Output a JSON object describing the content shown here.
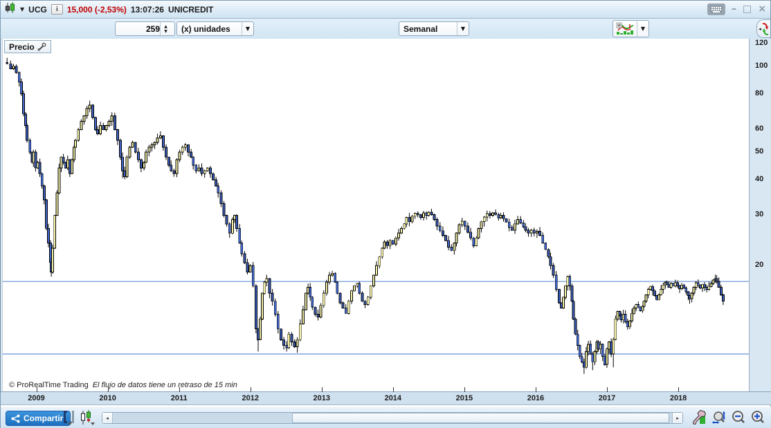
{
  "window": {
    "symbol": "UCG",
    "quote": "15,000 (-2,53%)",
    "time": "13:07:26",
    "name": "UNICREDIT",
    "controls": {
      "minimize": "–",
      "maximize": "□",
      "close": "×"
    }
  },
  "toolbar": {
    "units_value": "259",
    "units_label": "(x) unidades",
    "timeframe": "Semanal"
  },
  "chart": {
    "panel_label": "Precio"
  },
  "footer": {
    "copyright": "© ProRealTime Trading",
    "delay_notice": "El flujo de datos tiene un retraso de 15 min",
    "share_label": "Compartir"
  },
  "chart_data": {
    "type": "candlestick",
    "symbol": "UNICREDIT",
    "ticker": "UCG",
    "timeframe": "Semanal",
    "last_price": 15.0,
    "change_pct": -2.53,
    "quote_time": "13:07:26",
    "y_axis": {
      "scale": "log",
      "top": 124.8,
      "bottom": 7.25,
      "major_ticks": [
        120,
        100,
        80,
        60,
        50,
        40,
        30,
        20
      ],
      "minor_ticks": [
        110,
        90,
        70
      ]
    },
    "x_axis": {
      "start": 2008.5,
      "end": 2018.96,
      "year_ticks": [
        2009,
        2010,
        2011,
        2012,
        2013,
        2014,
        2015,
        2016,
        2017,
        2018
      ]
    },
    "horizontal_lines": {
      "color": "#7da3e0",
      "prices": [
        17.6,
        9.8
      ]
    },
    "colors": {
      "up": "#f3f0a6",
      "down": "#3f63c6",
      "outline": "#000000"
    },
    "candles": [
      [
        2008.56,
        102,
        null,
        107
      ],
      [
        2008.61,
        98
      ],
      [
        2008.65,
        100
      ],
      [
        2008.69,
        95
      ],
      [
        2008.73,
        88
      ],
      [
        2008.76,
        80
      ],
      [
        2008.79,
        68
      ],
      [
        2008.82,
        62
      ],
      [
        2008.84,
        55
      ],
      [
        2008.88,
        50
      ],
      [
        2008.91,
        46
      ],
      [
        2008.93,
        50
      ],
      [
        2008.96,
        44
      ],
      [
        2008.99,
        46
      ],
      [
        2009.02,
        42
      ],
      [
        2009.05,
        38
      ],
      [
        2009.08,
        34
      ],
      [
        2009.11,
        27
      ],
      [
        2009.14,
        24
      ],
      [
        2009.17,
        20.5
      ],
      [
        2009.18,
        19,
        18.3
      ],
      [
        2009.2,
        23
      ],
      [
        2009.23,
        30
      ],
      [
        2009.26,
        36
      ],
      [
        2009.29,
        44
      ],
      [
        2009.32,
        48
      ],
      [
        2009.35,
        46
      ],
      [
        2009.38,
        44
      ],
      [
        2009.41,
        47
      ],
      [
        2009.44,
        42
      ],
      [
        2009.47,
        47
      ],
      [
        2009.5,
        52
      ],
      [
        2009.52,
        55
      ],
      [
        2009.56,
        60
      ],
      [
        2009.6,
        64
      ],
      [
        2009.64,
        67
      ],
      [
        2009.68,
        71
      ],
      [
        2009.72,
        73
      ],
      [
        2009.76,
        66
      ],
      [
        2009.8,
        60
      ],
      [
        2009.83,
        58
      ],
      [
        2009.87,
        62
      ],
      [
        2009.91,
        60
      ],
      [
        2009.95,
        62
      ],
      [
        2009.99,
        64
      ],
      [
        2010.03,
        67
      ],
      [
        2010.07,
        60
      ],
      [
        2010.11,
        55
      ],
      [
        2010.15,
        48
      ],
      [
        2010.18,
        43,
        40.5
      ],
      [
        2010.21,
        41
      ],
      [
        2010.24,
        48
      ],
      [
        2010.28,
        52
      ],
      [
        2010.32,
        54
      ],
      [
        2010.36,
        50
      ],
      [
        2010.4,
        47
      ],
      [
        2010.44,
        44
      ],
      [
        2010.48,
        46
      ],
      [
        2010.51,
        50
      ],
      [
        2010.55,
        52
      ],
      [
        2010.59,
        53
      ],
      [
        2010.63,
        54
      ],
      [
        2010.67,
        56
      ],
      [
        2010.71,
        57
      ],
      [
        2010.75,
        52
      ],
      [
        2010.79,
        48
      ],
      [
        2010.83,
        45
      ],
      [
        2010.86,
        43
      ],
      [
        2010.9,
        42
      ],
      [
        2010.94,
        47
      ],
      [
        2010.98,
        50
      ],
      [
        2011.02,
        52
      ],
      [
        2011.06,
        53
      ],
      [
        2011.1,
        50
      ],
      [
        2011.14,
        48
      ],
      [
        2011.17,
        45
      ],
      [
        2011.21,
        43
      ],
      [
        2011.25,
        44
      ],
      [
        2011.29,
        42
      ],
      [
        2011.33,
        43
      ],
      [
        2011.37,
        44
      ],
      [
        2011.41,
        42
      ],
      [
        2011.45,
        40
      ],
      [
        2011.49,
        38
      ],
      [
        2011.52,
        36
      ],
      [
        2011.56,
        33
      ],
      [
        2011.6,
        30
      ],
      [
        2011.64,
        28
      ],
      [
        2011.68,
        26
      ],
      [
        2011.72,
        29
      ],
      [
        2011.75,
        30
      ],
      [
        2011.78,
        27
      ],
      [
        2011.82,
        24
      ],
      [
        2011.85,
        22
      ],
      [
        2011.89,
        20.5
      ],
      [
        2011.93,
        19
      ],
      [
        2011.97,
        20
      ],
      [
        2012.01,
        17
      ],
      [
        2012.05,
        12
      ],
      [
        2012.08,
        11,
        10.0
      ],
      [
        2012.11,
        13
      ],
      [
        2012.14,
        16
      ],
      [
        2012.17,
        17.5
      ],
      [
        2012.2,
        18
      ],
      [
        2012.24,
        16
      ],
      [
        2012.28,
        15
      ],
      [
        2012.32,
        13.5
      ],
      [
        2012.36,
        12
      ],
      [
        2012.4,
        11
      ],
      [
        2012.44,
        10.5
      ],
      [
        2012.48,
        10.3,
        10.0
      ],
      [
        2012.51,
        11.5
      ],
      [
        2012.55,
        10.8
      ],
      [
        2012.59,
        10.4
      ],
      [
        2012.63,
        11,
        9.9
      ],
      [
        2012.67,
        12.5
      ],
      [
        2012.71,
        14
      ],
      [
        2012.75,
        16
      ],
      [
        2012.78,
        16.8
      ],
      [
        2012.81,
        15.5
      ],
      [
        2012.84,
        14.3
      ],
      [
        2012.88,
        13.5
      ],
      [
        2012.92,
        13.2
      ],
      [
        2012.96,
        14.5
      ],
      [
        2013.0,
        16
      ],
      [
        2013.04,
        17.5
      ],
      [
        2013.08,
        18.5
      ],
      [
        2013.12,
        18.8
      ],
      [
        2013.16,
        17.5
      ],
      [
        2013.19,
        16
      ],
      [
        2013.23,
        14.8
      ],
      [
        2013.27,
        14.2
      ],
      [
        2013.31,
        13.6
      ],
      [
        2013.35,
        15
      ],
      [
        2013.39,
        16.3
      ],
      [
        2013.43,
        17
      ],
      [
        2013.47,
        17.3
      ],
      [
        2013.5,
        16
      ],
      [
        2013.54,
        15
      ],
      [
        2013.58,
        14.6
      ],
      [
        2013.62,
        15.5
      ],
      [
        2013.66,
        17
      ],
      [
        2013.7,
        18.5
      ],
      [
        2013.74,
        20
      ],
      [
        2013.78,
        21.5
      ],
      [
        2013.82,
        23
      ],
      [
        2013.85,
        24.2
      ],
      [
        2013.89,
        23.5
      ],
      [
        2013.93,
        24.5
      ],
      [
        2013.97,
        23.8
      ],
      [
        2014.01,
        25
      ],
      [
        2014.05,
        26
      ],
      [
        2014.09,
        27
      ],
      [
        2014.13,
        28
      ],
      [
        2014.16,
        29.5
      ],
      [
        2014.2,
        28.5
      ],
      [
        2014.24,
        29.8
      ],
      [
        2014.28,
        30.5
      ],
      [
        2014.32,
        30.2
      ],
      [
        2014.36,
        29.5
      ],
      [
        2014.4,
        30.6
      ],
      [
        2014.44,
        30
      ],
      [
        2014.47,
        30.8
      ],
      [
        2014.51,
        30.2
      ],
      [
        2014.55,
        29
      ],
      [
        2014.59,
        27.5
      ],
      [
        2014.63,
        26.5
      ],
      [
        2014.67,
        25.5
      ],
      [
        2014.71,
        24.5
      ],
      [
        2014.75,
        23.2
      ],
      [
        2014.79,
        22.6
      ],
      [
        2014.83,
        24
      ],
      [
        2014.86,
        26
      ],
      [
        2014.9,
        27.8
      ],
      [
        2014.94,
        28.6
      ],
      [
        2014.98,
        27.5
      ],
      [
        2015.02,
        26.2
      ],
      [
        2015.06,
        25
      ],
      [
        2015.1,
        23.5
      ],
      [
        2015.14,
        25
      ],
      [
        2015.17,
        27
      ],
      [
        2015.21,
        28.5
      ],
      [
        2015.25,
        29.6
      ],
      [
        2015.29,
        30.4
      ],
      [
        2015.33,
        30
      ],
      [
        2015.37,
        30.6
      ],
      [
        2015.41,
        30.2
      ],
      [
        2015.45,
        29.4
      ],
      [
        2015.48,
        30
      ],
      [
        2015.52,
        29.2
      ],
      [
        2015.56,
        28.4
      ],
      [
        2015.6,
        27.2
      ],
      [
        2015.64,
        26.6
      ],
      [
        2015.68,
        28
      ],
      [
        2015.72,
        29
      ],
      [
        2015.76,
        28.2
      ],
      [
        2015.8,
        27.4
      ],
      [
        2015.83,
        26.6
      ],
      [
        2015.87,
        26
      ],
      [
        2015.91,
        26.6
      ],
      [
        2015.95,
        26
      ],
      [
        2015.99,
        26.4
      ],
      [
        2016.03,
        25.5
      ],
      [
        2016.07,
        24
      ],
      [
        2016.11,
        22.8
      ],
      [
        2016.15,
        21.5
      ],
      [
        2016.18,
        20
      ],
      [
        2016.22,
        18.5
      ],
      [
        2016.26,
        16.5
      ],
      [
        2016.3,
        14.8
      ],
      [
        2016.33,
        14.2
      ],
      [
        2016.36,
        15.5
      ],
      [
        2016.39,
        17
      ],
      [
        2016.42,
        18.3
      ],
      [
        2016.45,
        17
      ],
      [
        2016.48,
        15
      ],
      [
        2016.5,
        13
      ],
      [
        2016.53,
        11.5
      ],
      [
        2016.56,
        10.5
      ],
      [
        2016.59,
        9.6
      ],
      [
        2016.62,
        9.2
      ],
      [
        2016.65,
        8.8,
        8.35
      ],
      [
        2016.68,
        10
      ],
      [
        2016.71,
        10.6
      ],
      [
        2016.74,
        9.8
      ],
      [
        2016.77,
        9.2,
        8.6
      ],
      [
        2016.8,
        10
      ],
      [
        2016.83,
        10.8
      ],
      [
        2016.85,
        10.2
      ],
      [
        2016.88,
        10.6
      ],
      [
        2016.91,
        9.6
      ],
      [
        2016.94,
        9.0
      ],
      [
        2016.97,
        10.2
      ],
      [
        2017.0,
        10.8
      ],
      [
        2017.03,
        9.8
      ],
      [
        2017.06,
        11,
        8.8
      ],
      [
        2017.09,
        13
      ],
      [
        2017.12,
        13.8
      ],
      [
        2017.15,
        13.4
      ],
      [
        2017.17,
        12.9
      ],
      [
        2017.2,
        13.5
      ],
      [
        2017.23,
        12.7
      ],
      [
        2017.26,
        12.2
      ],
      [
        2017.29,
        12.8
      ],
      [
        2017.32,
        13.6
      ],
      [
        2017.35,
        14.2
      ],
      [
        2017.38,
        14.6
      ],
      [
        2017.41,
        14.3
      ],
      [
        2017.44,
        13.9
      ],
      [
        2017.47,
        14.4
      ],
      [
        2017.49,
        15
      ],
      [
        2017.52,
        15.8
      ],
      [
        2017.55,
        16.5
      ],
      [
        2017.58,
        16.9
      ],
      [
        2017.61,
        16.3
      ],
      [
        2017.64,
        15.7
      ],
      [
        2017.67,
        15.2
      ],
      [
        2017.7,
        15.8
      ],
      [
        2017.73,
        16.5
      ],
      [
        2017.76,
        17.1
      ],
      [
        2017.79,
        17.5
      ],
      [
        2017.81,
        17.2
      ],
      [
        2017.84,
        16.8
      ],
      [
        2017.87,
        17.3
      ],
      [
        2017.9,
        17
      ],
      [
        2017.93,
        17.4
      ],
      [
        2017.96,
        17
      ],
      [
        2017.99,
        16.6
      ],
      [
        2018.02,
        17.1
      ],
      [
        2018.05,
        16.7
      ],
      [
        2018.08,
        16.2
      ],
      [
        2018.11,
        15.7
      ],
      [
        2018.13,
        15.3
      ],
      [
        2018.16,
        16
      ],
      [
        2018.19,
        16.8
      ],
      [
        2018.22,
        17.4
      ],
      [
        2018.25,
        17.1
      ],
      [
        2018.28,
        16.7
      ],
      [
        2018.31,
        17.2
      ],
      [
        2018.34,
        16.8
      ],
      [
        2018.37,
        16.5
      ],
      [
        2018.4,
        16.9
      ],
      [
        2018.43,
        17.3
      ],
      [
        2018.46,
        17.8
      ],
      [
        2018.49,
        18,
        null,
        18.6
      ],
      [
        2018.51,
        17.6
      ],
      [
        2018.54,
        16.8
      ],
      [
        2018.57,
        15.8
      ],
      [
        2018.6,
        15.0
      ]
    ]
  }
}
